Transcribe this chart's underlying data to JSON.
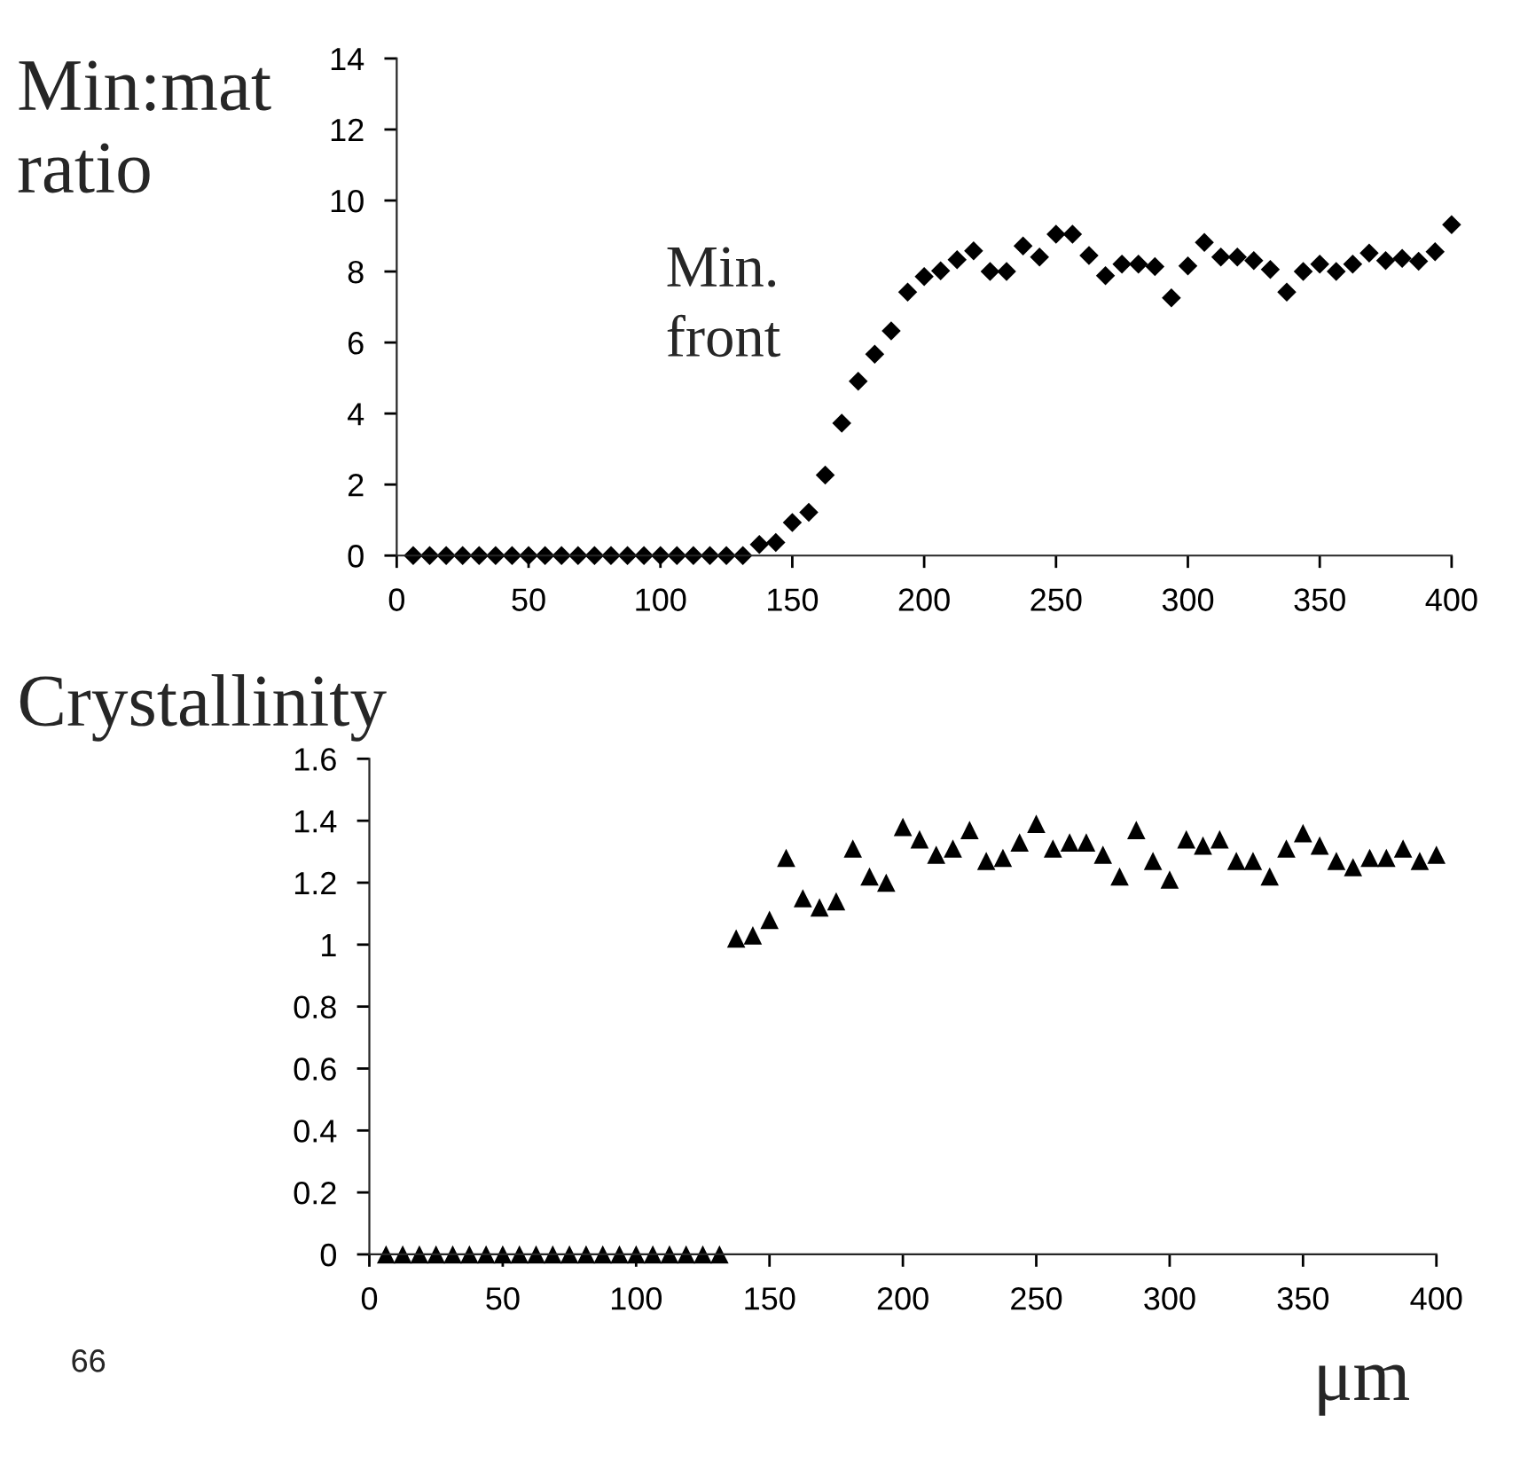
{
  "chart_data": [
    {
      "type": "scatter",
      "ylabel": "Min:mat\nratio",
      "annotations": [
        "Min.\nfront"
      ],
      "marker": "diamond",
      "grid": false,
      "legend": false,
      "xlim": [
        0,
        400
      ],
      "xticks": [
        0,
        50,
        100,
        150,
        200,
        250,
        300,
        350,
        400
      ],
      "ylim": [
        0,
        14
      ],
      "yticks": [
        0,
        2,
        4,
        6,
        8,
        10,
        12,
        14
      ],
      "x": [
        6.25,
        12.5,
        18.75,
        25,
        31.25,
        37.5,
        43.75,
        50,
        56.25,
        62.5,
        68.75,
        75,
        81.25,
        87.5,
        93.75,
        100,
        106.25,
        112.5,
        118.75,
        125,
        131.25,
        137.5,
        143.75,
        150,
        156.25,
        162.5,
        168.75,
        175,
        181.25,
        187.5,
        193.75,
        200,
        206.25,
        212.5,
        218.75,
        225,
        231.25,
        237.5,
        243.75,
        250,
        256.25,
        262.5,
        268.75,
        275,
        281.25,
        287.5,
        293.75,
        300,
        306.25,
        312.5,
        318.75,
        325,
        331.25,
        337.5,
        343.75,
        350,
        356.25,
        362.5,
        368.75,
        375,
        381.25,
        387.5,
        393.75,
        400
      ],
      "series": [
        {
          "color": "#000000",
          "values": [
            0,
            0,
            0,
            0,
            0,
            0,
            0,
            0,
            0,
            0,
            0,
            0,
            0,
            0,
            0,
            0,
            0,
            0,
            0,
            0,
            0,
            0.31,
            0.37,
            0.93,
            1.22,
            2.27,
            3.73,
            4.91,
            5.67,
            6.33,
            7.42,
            7.86,
            8.02,
            8.33,
            8.58,
            8.0,
            8.0,
            8.72,
            8.41,
            9.05,
            9.05,
            8.45,
            7.88,
            8.21,
            8.21,
            8.14,
            7.26,
            8.16,
            8.82,
            8.41,
            8.41,
            8.31,
            8.06,
            7.42,
            8.0,
            8.21,
            8.0,
            8.21,
            8.52,
            8.31,
            8.37,
            8.29,
            8.56,
            9.32
          ]
        }
      ]
    },
    {
      "type": "scatter",
      "ylabel": "Crystallinity",
      "xlabel": "μm",
      "annotations": [
        "66"
      ],
      "marker": "triangle",
      "grid": false,
      "legend": false,
      "xlim": [
        0,
        400
      ],
      "xticks": [
        0,
        50,
        100,
        150,
        200,
        250,
        300,
        350,
        400
      ],
      "ylim": [
        0,
        1.6
      ],
      "yticks": [
        0,
        0.2,
        0.4,
        0.6,
        0.8,
        1,
        1.2,
        1.4,
        1.6
      ],
      "x": [
        6.25,
        12.5,
        18.75,
        25,
        31.25,
        37.5,
        43.75,
        50,
        56.25,
        62.5,
        68.75,
        75,
        81.25,
        87.5,
        93.75,
        100,
        106.25,
        112.5,
        118.75,
        125,
        131.25,
        137.5,
        143.75,
        150,
        156.25,
        162.5,
        168.75,
        175,
        181.25,
        187.5,
        193.75,
        200,
        206.25,
        212.5,
        218.75,
        225,
        231.25,
        237.5,
        243.75,
        250,
        256.25,
        262.5,
        268.75,
        275,
        281.25,
        287.5,
        293.75,
        300,
        306.25,
        312.5,
        318.75,
        325,
        331.25,
        337.5,
        343.75,
        350,
        356.25,
        362.5,
        368.75,
        375,
        381.25,
        387.5,
        393.75,
        400
      ],
      "series": [
        {
          "color": "#000000",
          "values": [
            0,
            0,
            0,
            0,
            0,
            0,
            0,
            0,
            0,
            0,
            0,
            0,
            0,
            0,
            0,
            0,
            0,
            0,
            0,
            0,
            0,
            1.02,
            1.03,
            1.08,
            1.28,
            1.15,
            1.12,
            1.14,
            1.31,
            1.22,
            1.2,
            1.38,
            1.34,
            1.29,
            1.31,
            1.37,
            1.27,
            1.28,
            1.33,
            1.39,
            1.31,
            1.33,
            1.33,
            1.29,
            1.22,
            1.37,
            1.27,
            1.21,
            1.34,
            1.32,
            1.34,
            1.27,
            1.27,
            1.22,
            1.31,
            1.36,
            1.32,
            1.27,
            1.25,
            1.28,
            1.28,
            1.31,
            1.27,
            1.29
          ]
        }
      ]
    }
  ]
}
